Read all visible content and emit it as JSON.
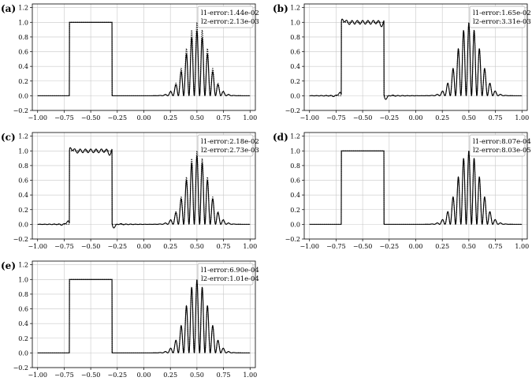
{
  "chart_data": [
    {
      "type": "line",
      "panel_label": "(a)",
      "xlim": [
        -1.05,
        1.05
      ],
      "ylim": [
        -0.2,
        1.25
      ],
      "xticks": [
        "−1.00",
        "−0.75",
        "−0.50",
        "−0.25",
        "0.00",
        "0.25",
        "0.50",
        "0.75",
        "1.00"
      ],
      "yticks": [
        "−0.2",
        "0.0",
        "0.2",
        "0.4",
        "0.6",
        "0.8",
        "1.0",
        "1.2"
      ],
      "legend": [
        "l1-error:1.44e-02",
        "l2-error:2.13e-03"
      ],
      "legend_placement": "top-right",
      "grid": true,
      "approx": {
        "gibbs": 0.0,
        "damp": 0.88
      }
    },
    {
      "type": "line",
      "panel_label": "(b)",
      "xlim": [
        -1.05,
        1.05
      ],
      "ylim": [
        -0.2,
        1.25
      ],
      "xticks": [
        "−1.00",
        "−0.75",
        "−0.50",
        "−0.25",
        "0.00",
        "0.25",
        "0.50",
        "0.75",
        "1.00"
      ],
      "yticks": [
        "−0.2",
        "0.0",
        "0.2",
        "0.4",
        "0.6",
        "0.8",
        "1.0",
        "1.2"
      ],
      "legend": [
        "l1-error:1.65e-02",
        "l2-error:3.31e-03"
      ],
      "legend_placement": "top-right",
      "grid": true,
      "approx": {
        "gibbs": 1.0,
        "damp": 0.99
      }
    },
    {
      "type": "line",
      "panel_label": "(c)",
      "xlim": [
        -1.05,
        1.05
      ],
      "ylim": [
        -0.2,
        1.25
      ],
      "xticks": [
        "−1.00",
        "−0.75",
        "−0.50",
        "−0.25",
        "0.00",
        "0.25",
        "0.50",
        "0.75",
        "1.00"
      ],
      "yticks": [
        "−0.2",
        "0.0",
        "0.2",
        "0.4",
        "0.6",
        "0.8",
        "1.0",
        "1.2"
      ],
      "legend": [
        "l1-error:2.18e-02",
        "l2-error:2.73e-03"
      ],
      "legend_placement": "top-right",
      "grid": true,
      "approx": {
        "gibbs": 1.0,
        "damp": 0.93
      }
    },
    {
      "type": "line",
      "panel_label": "(d)",
      "xlim": [
        -1.05,
        1.05
      ],
      "ylim": [
        -0.2,
        1.25
      ],
      "xticks": [
        "−1.00",
        "−0.75",
        "−0.50",
        "−0.25",
        "0.00",
        "0.25",
        "0.50",
        "0.75",
        "1.00"
      ],
      "yticks": [
        "−0.2",
        "0.0",
        "0.2",
        "0.4",
        "0.6",
        "0.8",
        "1.0",
        "1.2"
      ],
      "legend": [
        "l1-error:8.07e-04",
        "l2-error:8.03e-05"
      ],
      "legend_placement": "top-right",
      "grid": true,
      "approx": {
        "gibbs": 0.0,
        "damp": 1.0
      }
    },
    {
      "type": "line",
      "panel_label": "(e)",
      "xlim": [
        -1.05,
        1.05
      ],
      "ylim": [
        -0.2,
        1.25
      ],
      "xticks": [
        "−1.00",
        "−0.75",
        "−0.50",
        "−0.25",
        "0.00",
        "0.25",
        "0.50",
        "0.75",
        "1.00"
      ],
      "yticks": [
        "−0.2",
        "0.0",
        "0.2",
        "0.4",
        "0.6",
        "0.8",
        "1.0",
        "1.2"
      ],
      "legend": [
        "l1-error:6.90e-04",
        "l2-error:1.01e-04"
      ],
      "legend_placement": "top-right",
      "grid": true,
      "approx": {
        "gibbs": 0.0,
        "damp": 0.995
      }
    }
  ]
}
